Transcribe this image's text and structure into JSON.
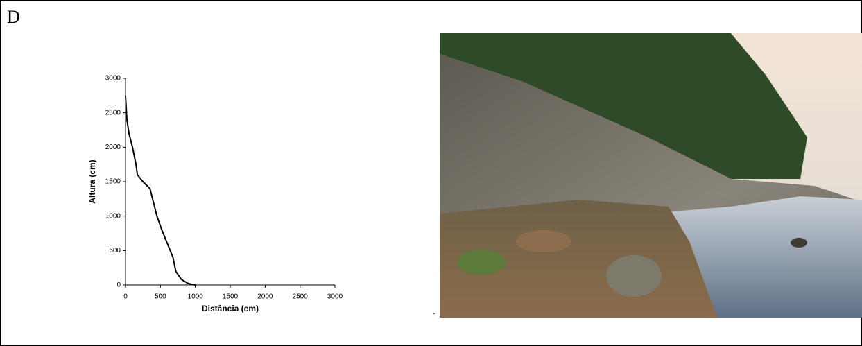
{
  "panel_label": "D",
  "chart_data": {
    "type": "line",
    "x": [
      0,
      20,
      50,
      100,
      150,
      170,
      250,
      350,
      400,
      450,
      520,
      600,
      680,
      720,
      800,
      900,
      1000
    ],
    "values": [
      2750,
      2400,
      2200,
      2000,
      1750,
      1600,
      1500,
      1400,
      1200,
      1000,
      800,
      600,
      400,
      200,
      80,
      20,
      0
    ],
    "color": "#000000",
    "x_label": "Distância (cm)",
    "y_label": "Altura (cm)",
    "xlim": [
      0,
      3000
    ],
    "xticks": [
      0,
      500,
      1000,
      1500,
      2000,
      2500,
      3000
    ],
    "ylim": [
      0,
      3000
    ],
    "yticks": [
      0,
      500,
      1000,
      1500,
      2000,
      2500,
      3000
    ],
    "grid": false
  },
  "photo_mark": "."
}
